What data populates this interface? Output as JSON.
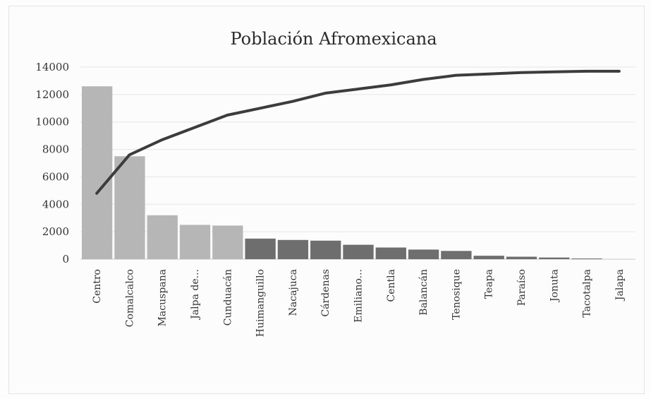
{
  "chart_data": {
    "type": "bar",
    "title": "Población Afromexicana",
    "xlabel": "",
    "ylabel": "",
    "ylim": [
      0,
      14000
    ],
    "yticks": [
      0,
      2000,
      4000,
      6000,
      8000,
      10000,
      12000,
      14000
    ],
    "grid": true,
    "legend": "none",
    "categories": [
      "Centro",
      "Comalcalco",
      "Macuspana",
      "Jalpa de...",
      "Cunduacán",
      "Huimanguillo",
      "Nacajuca",
      "Cárdenas",
      "Emiliano...",
      "Centla",
      "Balancán",
      "Tenosique",
      "Teapa",
      "Paraíso",
      "Jonuta",
      "Tacotalpa",
      "Jalapa"
    ],
    "series": [
      {
        "type": "bar",
        "values": [
          12600,
          7500,
          3200,
          2500,
          2450,
          1500,
          1400,
          1350,
          1050,
          850,
          700,
          600,
          250,
          180,
          120,
          50,
          0
        ],
        "colors": [
          "#b6b6b6",
          "#b6b6b6",
          "#b6b6b6",
          "#b6b6b6",
          "#b6b6b6",
          "#6e6e6e",
          "#6e6e6e",
          "#6e6e6e",
          "#6e6e6e",
          "#6e6e6e",
          "#6e6e6e",
          "#6e6e6e",
          "#6e6e6e",
          "#6e6e6e",
          "#6e6e6e",
          "#6e6e6e",
          "#6e6e6e"
        ]
      },
      {
        "type": "line",
        "values": [
          4800,
          7600,
          8700,
          9600,
          10500,
          11000,
          11500,
          12100,
          12400,
          12700,
          13100,
          13400,
          13500,
          13600,
          13650,
          13700,
          13700
        ],
        "color": "#3c3c3c"
      }
    ]
  }
}
